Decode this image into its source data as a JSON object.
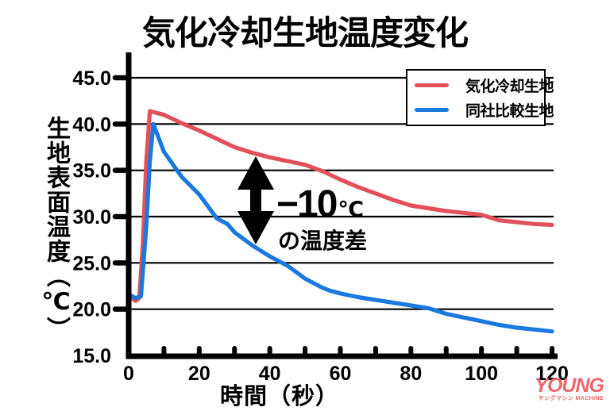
{
  "title": "気化冷却生地温度変化",
  "y_axis": {
    "label": "生地表面温度（℃）"
  },
  "x_axis": {
    "label": "時間（秒）"
  },
  "legend": [
    {
      "label": "気化冷却生地",
      "color": "#e2505a"
    },
    {
      "label": "同社比較生地",
      "color": "#1b78dc"
    }
  ],
  "annotation": {
    "value": "−10",
    "unit": "℃",
    "caption": "の温度差"
  },
  "watermark": {
    "brand": "YOUNG",
    "sub": "ヤングマシン MACHINE",
    "color": "#ee676d"
  },
  "colors": {
    "axis": "#000000",
    "grid": "#000000",
    "background": "#ffffff"
  },
  "chart_data": {
    "type": "line",
    "title": "気化冷却生地温度変化",
    "xlabel": "時間（秒）",
    "ylabel": "生地表面温度（℃）",
    "xlim": [
      0,
      120
    ],
    "ylim": [
      15,
      45
    ],
    "x_minor_step": 10,
    "x_tick_labels": [
      "0",
      "20",
      "40",
      "60",
      "80",
      "100",
      "120"
    ],
    "y_tick_labels": [
      "45.0",
      "40.0",
      "35.0",
      "30.0",
      "25.0",
      "20.0",
      "15.0"
    ],
    "grid": "horizontal",
    "legend_position": "top-right",
    "series": [
      {
        "name": "気化冷却生地",
        "color": "#e2505a",
        "points": [
          [
            0,
            21.4
          ],
          [
            2,
            20.9
          ],
          [
            3,
            21.2
          ],
          [
            4,
            27.0
          ],
          [
            5,
            36.0
          ],
          [
            6,
            41.4
          ],
          [
            10,
            41.0
          ],
          [
            15,
            40.1
          ],
          [
            20,
            39.3
          ],
          [
            25,
            38.4
          ],
          [
            30,
            37.5
          ],
          [
            35,
            36.9
          ],
          [
            40,
            36.4
          ],
          [
            45,
            36.0
          ],
          [
            50,
            35.6
          ],
          [
            55,
            34.9
          ],
          [
            60,
            34.0
          ],
          [
            65,
            33.2
          ],
          [
            70,
            32.5
          ],
          [
            75,
            31.8
          ],
          [
            80,
            31.2
          ],
          [
            85,
            30.9
          ],
          [
            90,
            30.6
          ],
          [
            95,
            30.4
          ],
          [
            100,
            30.2
          ],
          [
            105,
            29.6
          ],
          [
            110,
            29.4
          ],
          [
            115,
            29.2
          ],
          [
            120,
            29.1
          ]
        ]
      },
      {
        "name": "同社比較生地",
        "color": "#1b78dc",
        "points": [
          [
            0,
            21.6
          ],
          [
            2,
            21.2
          ],
          [
            3.5,
            21.4
          ],
          [
            5,
            29.0
          ],
          [
            6,
            36.0
          ],
          [
            7,
            40.0
          ],
          [
            10,
            37.0
          ],
          [
            15,
            34.3
          ],
          [
            20,
            32.4
          ],
          [
            25,
            29.8
          ],
          [
            28,
            29.2
          ],
          [
            30,
            28.3
          ],
          [
            35,
            26.9
          ],
          [
            40,
            25.7
          ],
          [
            45,
            24.7
          ],
          [
            50,
            23.3
          ],
          [
            55,
            22.3
          ],
          [
            57,
            22.0
          ],
          [
            60,
            21.7
          ],
          [
            65,
            21.3
          ],
          [
            70,
            21.0
          ],
          [
            75,
            20.7
          ],
          [
            80,
            20.4
          ],
          [
            85,
            20.1
          ],
          [
            90,
            19.5
          ],
          [
            95,
            19.1
          ],
          [
            100,
            18.7
          ],
          [
            105,
            18.3
          ],
          [
            110,
            18.0
          ],
          [
            115,
            17.8
          ],
          [
            120,
            17.6
          ]
        ]
      }
    ],
    "annotation": {
      "text": "−10℃ の温度差",
      "arrow": "double-vertical"
    }
  }
}
